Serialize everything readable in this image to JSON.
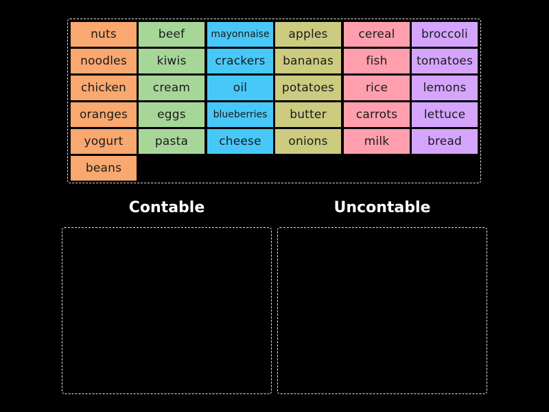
{
  "colors": {
    "orange": "#f9a870",
    "green": "#a7d699",
    "blue": "#48c8f8",
    "olive": "#cccb80",
    "pink": "#ff9fae",
    "purple": "#d5a5fd"
  },
  "columns": [
    {
      "color": "orange",
      "items": [
        "nuts",
        "noodles",
        "chicken",
        "oranges",
        "yogurt",
        "beans"
      ]
    },
    {
      "color": "green",
      "items": [
        "beef",
        "kiwis",
        "cream",
        "eggs",
        "pasta"
      ]
    },
    {
      "color": "blue",
      "items": [
        "mayonnaise",
        "crackers",
        "oil",
        "blueberries",
        "cheese"
      ]
    },
    {
      "color": "olive",
      "items": [
        "apples",
        "bananas",
        "potatoes",
        "butter",
        "onions"
      ]
    },
    {
      "color": "pink",
      "items": [
        "cereal",
        "fish",
        "rice",
        "carrots",
        "milk"
      ]
    },
    {
      "color": "purple",
      "items": [
        "broccoli",
        "tomatoes",
        "lemons",
        "lettuce",
        "bread"
      ]
    }
  ],
  "groups": {
    "left_title": "Contable",
    "right_title": "Uncontable"
  }
}
